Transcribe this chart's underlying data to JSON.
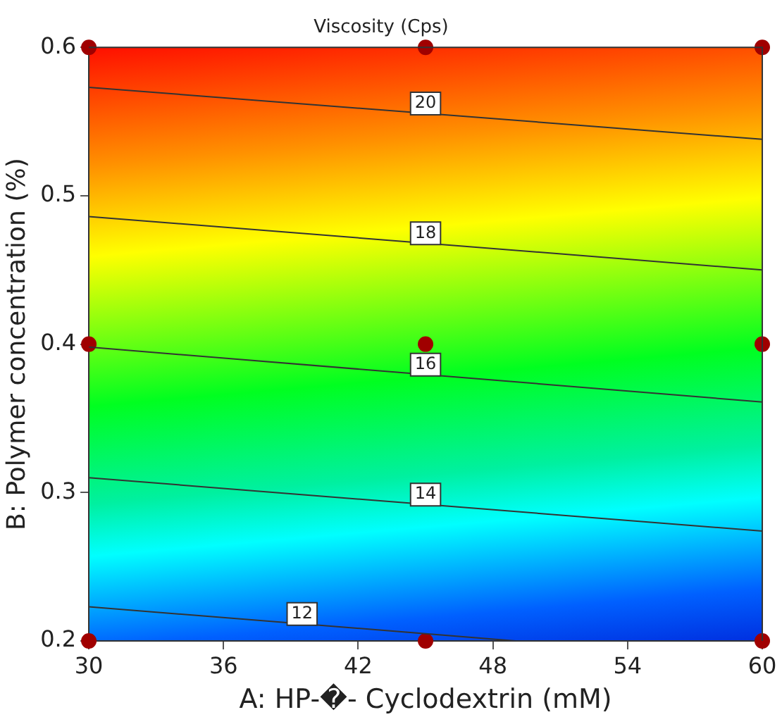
{
  "chart_data": {
    "type": "line",
    "title": "Viscosity (Cps)",
    "xlabel": "A: HP-�- Cyclodextrin (mM)",
    "ylabel": "B: Polymer concentration (%)",
    "xlim": [
      30,
      60
    ],
    "xticks": [
      30,
      36,
      42,
      48,
      54,
      60
    ],
    "ylim": [
      0.2,
      0.6
    ],
    "yticks": [
      0.2,
      0.3,
      0.4,
      0.5,
      0.6
    ],
    "grid": false,
    "legend": false,
    "series": [
      {
        "name": "20",
        "color": "#333333",
        "x": [
          30,
          60
        ],
        "values": [
          0.573,
          0.538
        ]
      },
      {
        "name": "18",
        "color": "#333333",
        "x": [
          30,
          60
        ],
        "values": [
          0.486,
          0.45
        ]
      },
      {
        "name": "16",
        "color": "#333333",
        "x": [
          30,
          60
        ],
        "values": [
          0.398,
          0.361
        ]
      },
      {
        "name": "14",
        "color": "#333333",
        "x": [
          30,
          60
        ],
        "values": [
          0.31,
          0.274
        ]
      },
      {
        "name": "12",
        "color": "#333333",
        "x": [
          30,
          49
        ],
        "values": [
          0.223,
          0.2
        ]
      },
      {
        "type": "scatter",
        "color": "#a00000",
        "marker": "circle",
        "x": [
          30,
          45,
          60,
          30,
          45,
          60,
          30,
          45,
          60
        ],
        "values": [
          0.6,
          0.6,
          0.6,
          0.4,
          0.4,
          0.4,
          0.2,
          0.2,
          0.2
        ]
      }
    ]
  }
}
